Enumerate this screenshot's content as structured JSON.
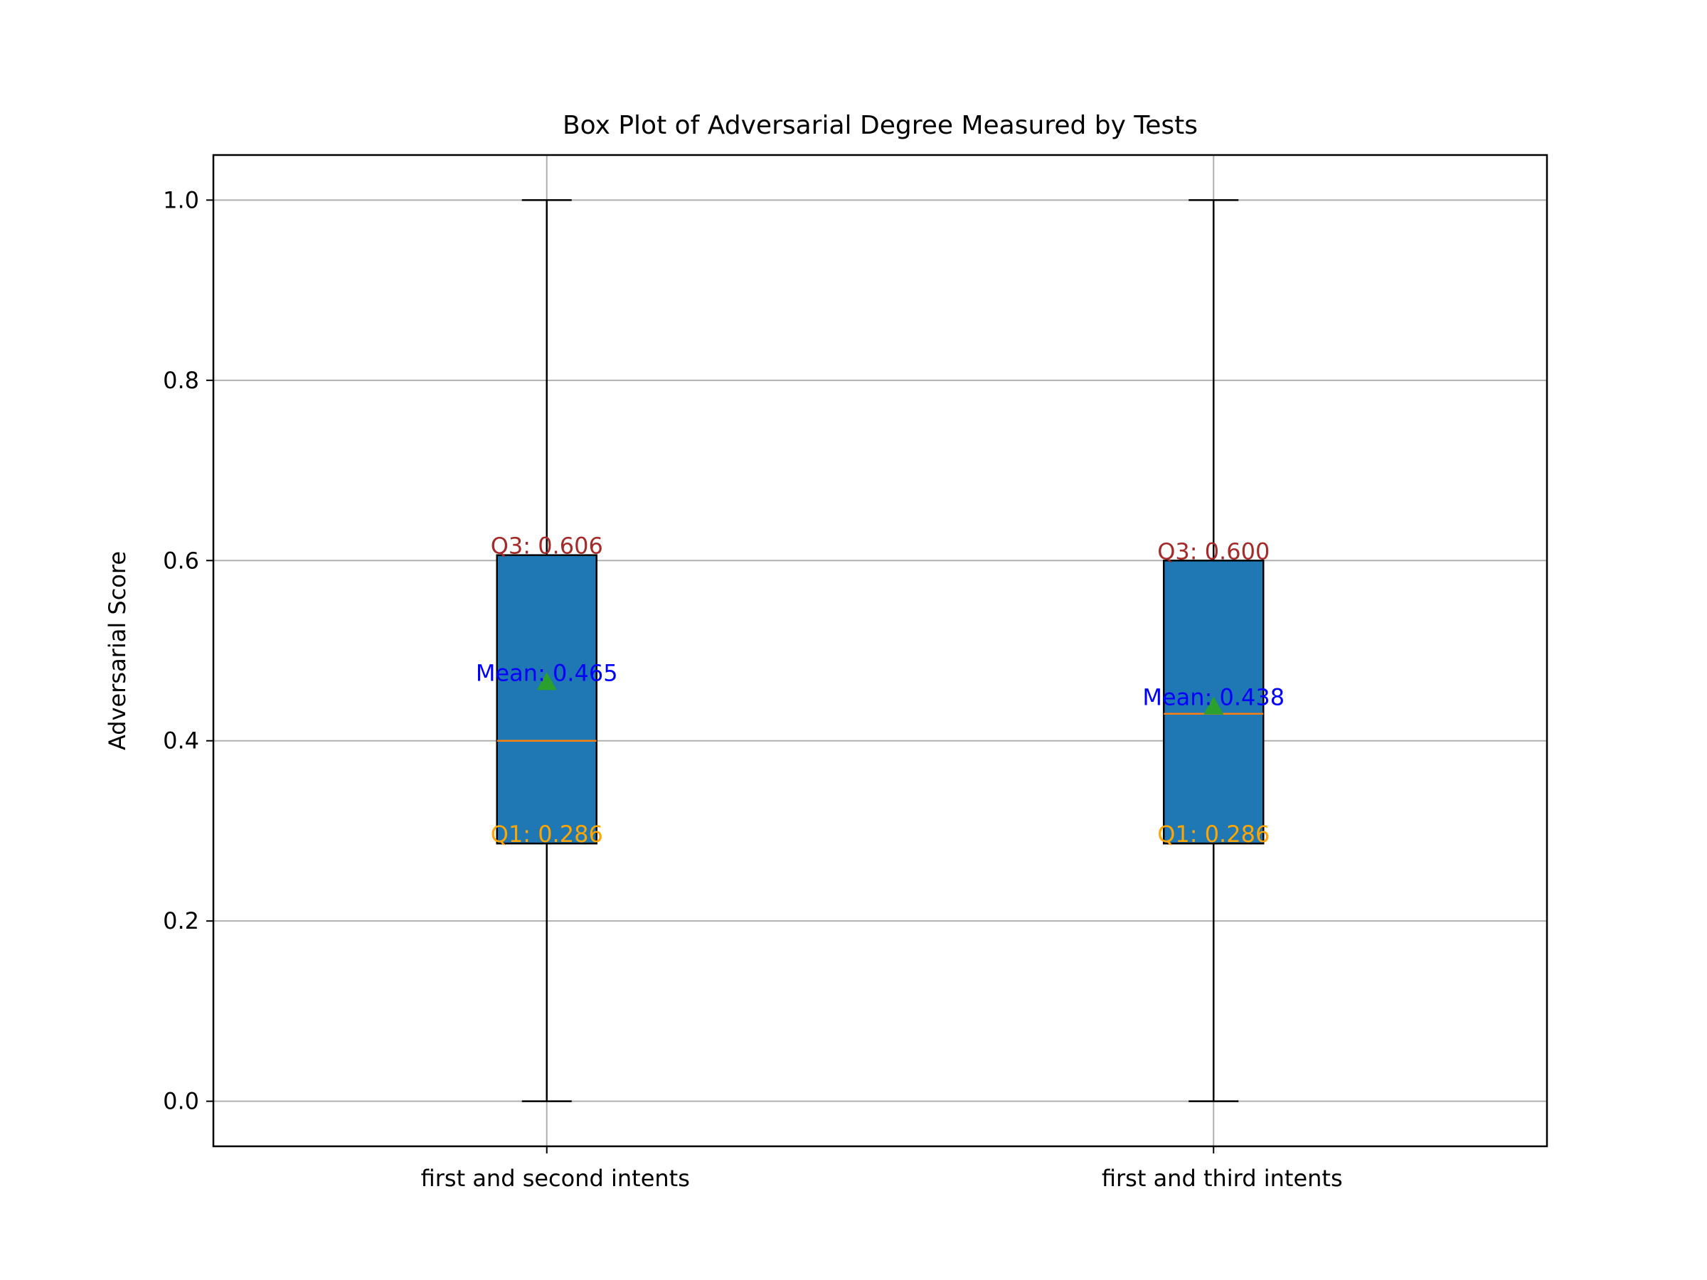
{
  "chart_data": {
    "type": "box",
    "title": "Box Plot of Adversarial Degree Measured by Tests",
    "xlabel": "",
    "ylabel": "Adversarial Score",
    "ylim": [
      -0.05,
      1.05
    ],
    "yticks": [
      0.0,
      0.2,
      0.4,
      0.6,
      0.8,
      1.0
    ],
    "ytick_labels": [
      "0.0",
      "0.2",
      "0.4",
      "0.6",
      "0.8",
      "1.0"
    ],
    "grid": true,
    "categories": [
      "first and second intents",
      "first and third intents"
    ],
    "boxes": [
      {
        "category": "first and second intents",
        "min": 0.0,
        "q1": 0.286,
        "median": 0.4,
        "q3": 0.606,
        "max": 1.0,
        "mean": 0.465,
        "labels": {
          "q3": "Q3: 0.606",
          "mean": "Mean: 0.465",
          "q1": "Q1: 0.286"
        }
      },
      {
        "category": "first and third intents",
        "min": 0.0,
        "q1": 0.286,
        "median": 0.43,
        "q3": 0.6,
        "max": 1.0,
        "mean": 0.438,
        "labels": {
          "q3": "Q3: 0.600",
          "mean": "Mean: 0.438",
          "q1": "Q1: 0.286"
        }
      }
    ],
    "colors": {
      "box_fill": "#1f77b4",
      "median": "#ff7f0e",
      "mean_marker": "#2ca02c",
      "q3_label": "#a52a2a",
      "mean_label": "#0000ff",
      "q1_label": "#ffa500",
      "grid": "#b0b0b0"
    }
  }
}
